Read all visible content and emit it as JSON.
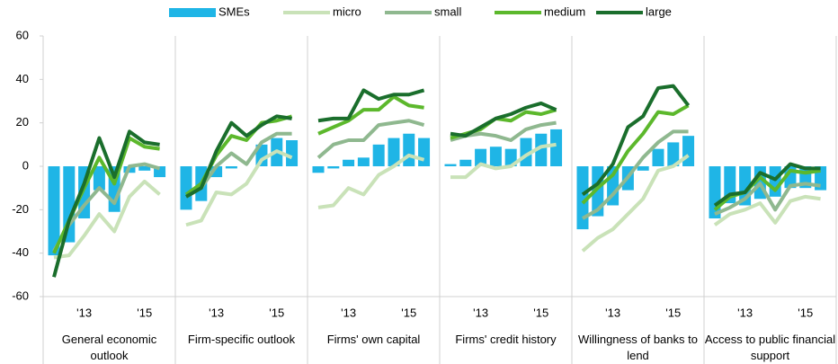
{
  "chart_data": {
    "type": "panel-bar-line",
    "ylim": [
      -60,
      60
    ],
    "yticks": [
      -60,
      -40,
      -20,
      0,
      20,
      40,
      60
    ],
    "grid": false,
    "legend": "top",
    "categories": [
      null,
      null,
      "'13",
      null,
      null,
      null,
      "'15",
      null
    ],
    "series": [
      {
        "name": "SMEs",
        "color": "#1fb5e6",
        "kind": "bar"
      },
      {
        "name": "micro",
        "color": "#c9e2b8",
        "kind": "line"
      },
      {
        "name": "small",
        "color": "#8fb88f",
        "kind": "line"
      },
      {
        "name": "medium",
        "color": "#5cb82c",
        "kind": "line"
      },
      {
        "name": "large",
        "color": "#1a6e2c",
        "kind": "line"
      }
    ],
    "panels": [
      {
        "label": "General economic outlook",
        "values": [
          [
            -41,
            -35,
            -24,
            -11,
            -21,
            -3,
            -2,
            -5
          ],
          [
            -42,
            -41,
            -32,
            -22,
            -30,
            -14,
            -7,
            -13
          ],
          [
            -39,
            -27,
            -18,
            -10,
            -17,
            0,
            1,
            -1
          ],
          [
            -40,
            -25,
            -10,
            4,
            -8,
            13,
            9,
            8
          ],
          [
            -51,
            -25,
            -8,
            13,
            -5,
            16,
            11,
            10
          ]
        ]
      },
      {
        "label": "Firm-specific outlook",
        "values": [
          [
            -20,
            -16,
            -5,
            -1,
            0,
            10,
            13,
            12
          ],
          [
            -27,
            -25,
            -12,
            -13,
            -8,
            3,
            7,
            4
          ],
          [
            -14,
            -10,
            0,
            6,
            1,
            11,
            15,
            15
          ],
          [
            -13,
            -8,
            5,
            14,
            12,
            20,
            21,
            23
          ],
          [
            -14,
            -10,
            7,
            20,
            14,
            19,
            23,
            22
          ]
        ]
      },
      {
        "label": "Firms' own capital",
        "values": [
          [
            -3,
            -1,
            3,
            4,
            10,
            13,
            15,
            13
          ],
          [
            -19,
            -18,
            -10,
            -13,
            -4,
            0,
            5,
            3
          ],
          [
            4,
            10,
            12,
            12,
            19,
            20,
            21,
            19
          ],
          [
            15,
            18,
            21,
            26,
            26,
            32,
            28,
            27
          ],
          [
            21,
            22,
            22,
            35,
            31,
            33,
            33,
            35
          ]
        ]
      },
      {
        "label": "Firms' credit history",
        "values": [
          [
            1,
            3,
            8,
            9,
            8,
            13,
            15,
            17
          ],
          [
            -5,
            -5,
            1,
            -1,
            0,
            5,
            9,
            10
          ],
          [
            12,
            14,
            15,
            14,
            12,
            17,
            19,
            20
          ],
          [
            13,
            15,
            17,
            22,
            21,
            25,
            24,
            26
          ],
          [
            15,
            14,
            18,
            22,
            24,
            27,
            29,
            26
          ]
        ]
      },
      {
        "label": "Willingness of banks to lend",
        "values": [
          [
            -29,
            -23,
            -18,
            -11,
            -2,
            8,
            11,
            14
          ],
          [
            -39,
            -33,
            -29,
            -22,
            -15,
            -2,
            0,
            5
          ],
          [
            -24,
            -20,
            -13,
            -5,
            4,
            11,
            16,
            16
          ],
          [
            -17,
            -10,
            -4,
            7,
            15,
            25,
            24,
            28
          ],
          [
            -13,
            -8,
            1,
            18,
            23,
            36,
            37,
            28
          ]
        ]
      },
      {
        "label": "Access to public financial support",
        "values": [
          [
            -24,
            -17,
            -18,
            -15,
            -14,
            -10,
            -10,
            -11
          ],
          [
            -27,
            -22,
            -20,
            -17,
            -26,
            -16,
            -14,
            -15
          ],
          [
            -22,
            -19,
            -15,
            -8,
            -20,
            -9,
            -8,
            -9
          ],
          [
            -20,
            -14,
            -12,
            -5,
            -11,
            -2,
            -3,
            -2
          ],
          [
            -18,
            -13,
            -12,
            -3,
            -6,
            1,
            -1,
            -1
          ]
        ]
      }
    ]
  }
}
